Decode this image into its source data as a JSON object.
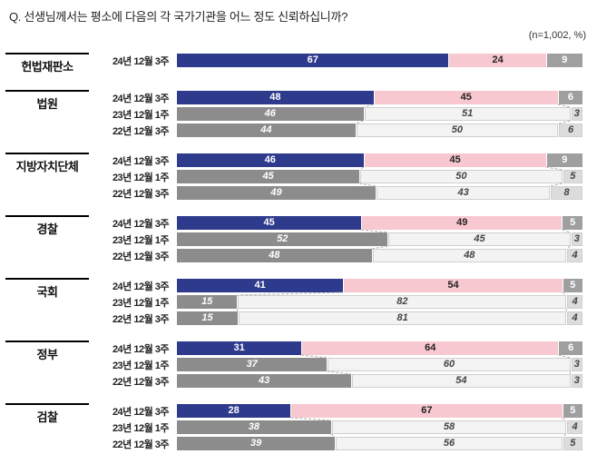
{
  "header": {
    "title": "Q. 선생님께서는 평소에 다음의 각 국가기관을 어느 정도 신뢰하십니까?",
    "note": "(n=1,002,  %)"
  },
  "chart_data": {
    "type": "bar",
    "orientation": "horizontal",
    "stacked": true,
    "unit": "%",
    "value_range": [
      0,
      100
    ],
    "colors": {
      "current_segments": [
        "#2e3a8c",
        "#f8c8d0",
        "#9f9f9f"
      ],
      "past_segments": [
        "#8c8c8c",
        "#f3f3f3",
        "#dcdcdc"
      ]
    },
    "groups": [
      {
        "label": "헌법재판소",
        "rows": [
          {
            "period": "24년 12월 3주",
            "current": true,
            "values": [
              67,
              24,
              9
            ]
          }
        ]
      },
      {
        "label": "법원",
        "rows": [
          {
            "period": "24년 12월 3주",
            "current": true,
            "values": [
              48,
              45,
              6
            ]
          },
          {
            "period": "23년 12월 1주",
            "current": false,
            "values": [
              46,
              51,
              3
            ]
          },
          {
            "period": "22년 12월 3주",
            "current": false,
            "values": [
              44,
              50,
              6
            ]
          }
        ]
      },
      {
        "label": "지방자치단체",
        "rows": [
          {
            "period": "24년 12월 3주",
            "current": true,
            "values": [
              46,
              45,
              9
            ]
          },
          {
            "period": "23년 12월 1주",
            "current": false,
            "values": [
              45,
              50,
              5
            ]
          },
          {
            "period": "22년 12월 3주",
            "current": false,
            "values": [
              49,
              43,
              8
            ]
          }
        ]
      },
      {
        "label": "경찰",
        "rows": [
          {
            "period": "24년 12월 3주",
            "current": true,
            "values": [
              45,
              49,
              5
            ]
          },
          {
            "period": "23년 12월 1주",
            "current": false,
            "values": [
              52,
              45,
              3
            ]
          },
          {
            "period": "22년 12월 3주",
            "current": false,
            "values": [
              48,
              48,
              4
            ]
          }
        ]
      },
      {
        "label": "국회",
        "rows": [
          {
            "period": "24년 12월 3주",
            "current": true,
            "values": [
              41,
              54,
              5
            ]
          },
          {
            "period": "23년 12월 1주",
            "current": false,
            "values": [
              15,
              82,
              4
            ]
          },
          {
            "period": "22년 12월 3주",
            "current": false,
            "values": [
              15,
              81,
              4
            ]
          }
        ]
      },
      {
        "label": "정부",
        "rows": [
          {
            "period": "24년 12월 3주",
            "current": true,
            "values": [
              31,
              64,
              6
            ]
          },
          {
            "period": "23년 12월 1주",
            "current": false,
            "values": [
              37,
              60,
              3
            ]
          },
          {
            "period": "22년 12월 3주",
            "current": false,
            "values": [
              43,
              54,
              3
            ]
          }
        ]
      },
      {
        "label": "검찰",
        "rows": [
          {
            "period": "24년 12월 3주",
            "current": true,
            "values": [
              28,
              67,
              5
            ]
          },
          {
            "period": "23년 12월 1주",
            "current": false,
            "values": [
              38,
              58,
              4
            ]
          },
          {
            "period": "22년 12월 3주",
            "current": false,
            "values": [
              39,
              56,
              5
            ]
          }
        ]
      }
    ]
  }
}
